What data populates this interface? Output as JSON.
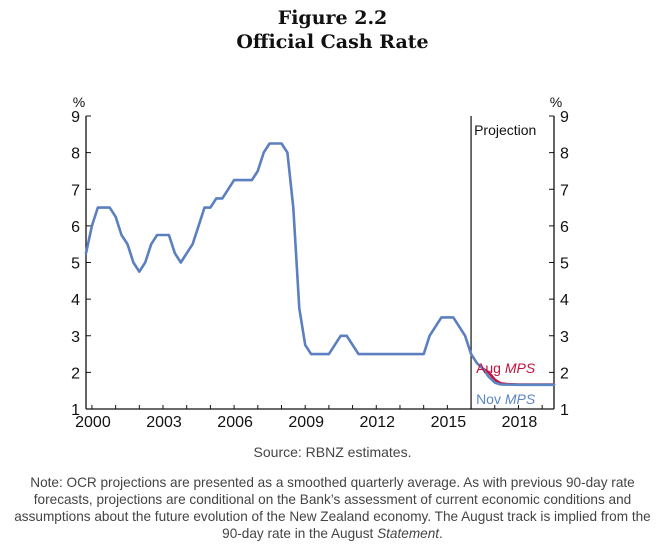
{
  "figure": {
    "number": "Figure 2.2",
    "title": "Official Cash Rate"
  },
  "source": "Source: RBNZ estimates.",
  "note": {
    "text": "Note: OCR projections are presented as a smoothed quarterly average. As with previous 90-day rate forecasts, projections are conditional on the Bank’s assessment of current economic conditions and assumptions about the future evolution of the New Zealand economy. The August track is implied from the 90-day rate in the August ",
    "italic": "Statement",
    "end": "."
  },
  "chart_data": {
    "type": "line",
    "title": "Official Cash Rate",
    "ylabel_left": "%",
    "ylabel_right": "%",
    "ylim": [
      1,
      9
    ],
    "yticks": [
      1,
      2,
      3,
      4,
      5,
      6,
      7,
      8,
      9
    ],
    "xlim": [
      1999.75,
      2019.5
    ],
    "xticks": [
      2000,
      2003,
      2006,
      2009,
      2012,
      2015,
      2018
    ],
    "xtick_labels": [
      "2000",
      "2003",
      "2006",
      "2009",
      "2012",
      "2015",
      "2018"
    ],
    "projection_start": 2016.0,
    "projection_label": "Projection",
    "colors": {
      "history": "#5b7fbf",
      "aug": "#c8103c",
      "nov": "#5b86c4",
      "axis": "#111111"
    },
    "series": [
      {
        "name": "OCR",
        "points": [
          [
            1999.75,
            5.25
          ],
          [
            2000.0,
            6.0
          ],
          [
            2000.25,
            6.5
          ],
          [
            2000.5,
            6.5
          ],
          [
            2000.75,
            6.5
          ],
          [
            2001.0,
            6.25
          ],
          [
            2001.25,
            5.75
          ],
          [
            2001.5,
            5.5
          ],
          [
            2001.75,
            5.0
          ],
          [
            2002.0,
            4.75
          ],
          [
            2002.25,
            5.0
          ],
          [
            2002.5,
            5.5
          ],
          [
            2002.75,
            5.75
          ],
          [
            2003.0,
            5.75
          ],
          [
            2003.25,
            5.75
          ],
          [
            2003.5,
            5.25
          ],
          [
            2003.75,
            5.0
          ],
          [
            2004.0,
            5.25
          ],
          [
            2004.25,
            5.5
          ],
          [
            2004.5,
            6.0
          ],
          [
            2004.75,
            6.5
          ],
          [
            2005.0,
            6.5
          ],
          [
            2005.25,
            6.75
          ],
          [
            2005.5,
            6.75
          ],
          [
            2005.75,
            7.0
          ],
          [
            2006.0,
            7.25
          ],
          [
            2006.25,
            7.25
          ],
          [
            2006.5,
            7.25
          ],
          [
            2006.75,
            7.25
          ],
          [
            2007.0,
            7.5
          ],
          [
            2007.25,
            8.0
          ],
          [
            2007.5,
            8.25
          ],
          [
            2007.75,
            8.25
          ],
          [
            2008.0,
            8.25
          ],
          [
            2008.25,
            8.0
          ],
          [
            2008.5,
            6.5
          ],
          [
            2008.75,
            3.75
          ],
          [
            2009.0,
            2.75
          ],
          [
            2009.25,
            2.5
          ],
          [
            2009.5,
            2.5
          ],
          [
            2009.75,
            2.5
          ],
          [
            2010.0,
            2.5
          ],
          [
            2010.25,
            2.75
          ],
          [
            2010.5,
            3.0
          ],
          [
            2010.75,
            3.0
          ],
          [
            2011.0,
            2.75
          ],
          [
            2011.25,
            2.5
          ],
          [
            2011.5,
            2.5
          ],
          [
            2012.0,
            2.5
          ],
          [
            2013.0,
            2.5
          ],
          [
            2013.75,
            2.5
          ],
          [
            2014.0,
            2.5
          ],
          [
            2014.25,
            3.0
          ],
          [
            2014.5,
            3.25
          ],
          [
            2014.75,
            3.5
          ],
          [
            2015.0,
            3.5
          ],
          [
            2015.25,
            3.5
          ],
          [
            2015.5,
            3.25
          ],
          [
            2015.75,
            3.0
          ],
          [
            2016.0,
            2.5
          ],
          [
            2016.25,
            2.25
          ],
          [
            2016.5,
            2.1
          ]
        ]
      },
      {
        "name": "Aug MPS",
        "label": "Aug",
        "label_italic": "MPS",
        "points": [
          [
            2016.5,
            2.1
          ],
          [
            2016.75,
            2.0
          ],
          [
            2017.0,
            1.8
          ],
          [
            2017.25,
            1.7
          ],
          [
            2017.5,
            1.68
          ],
          [
            2018.0,
            1.67
          ],
          [
            2019.5,
            1.67
          ]
        ]
      },
      {
        "name": "Nov MPS",
        "label": "Nov",
        "label_italic": "MPS",
        "points": [
          [
            2016.5,
            2.1
          ],
          [
            2016.75,
            1.88
          ],
          [
            2017.0,
            1.72
          ],
          [
            2017.25,
            1.67
          ],
          [
            2018.0,
            1.66
          ],
          [
            2019.5,
            1.66
          ]
        ]
      }
    ]
  }
}
